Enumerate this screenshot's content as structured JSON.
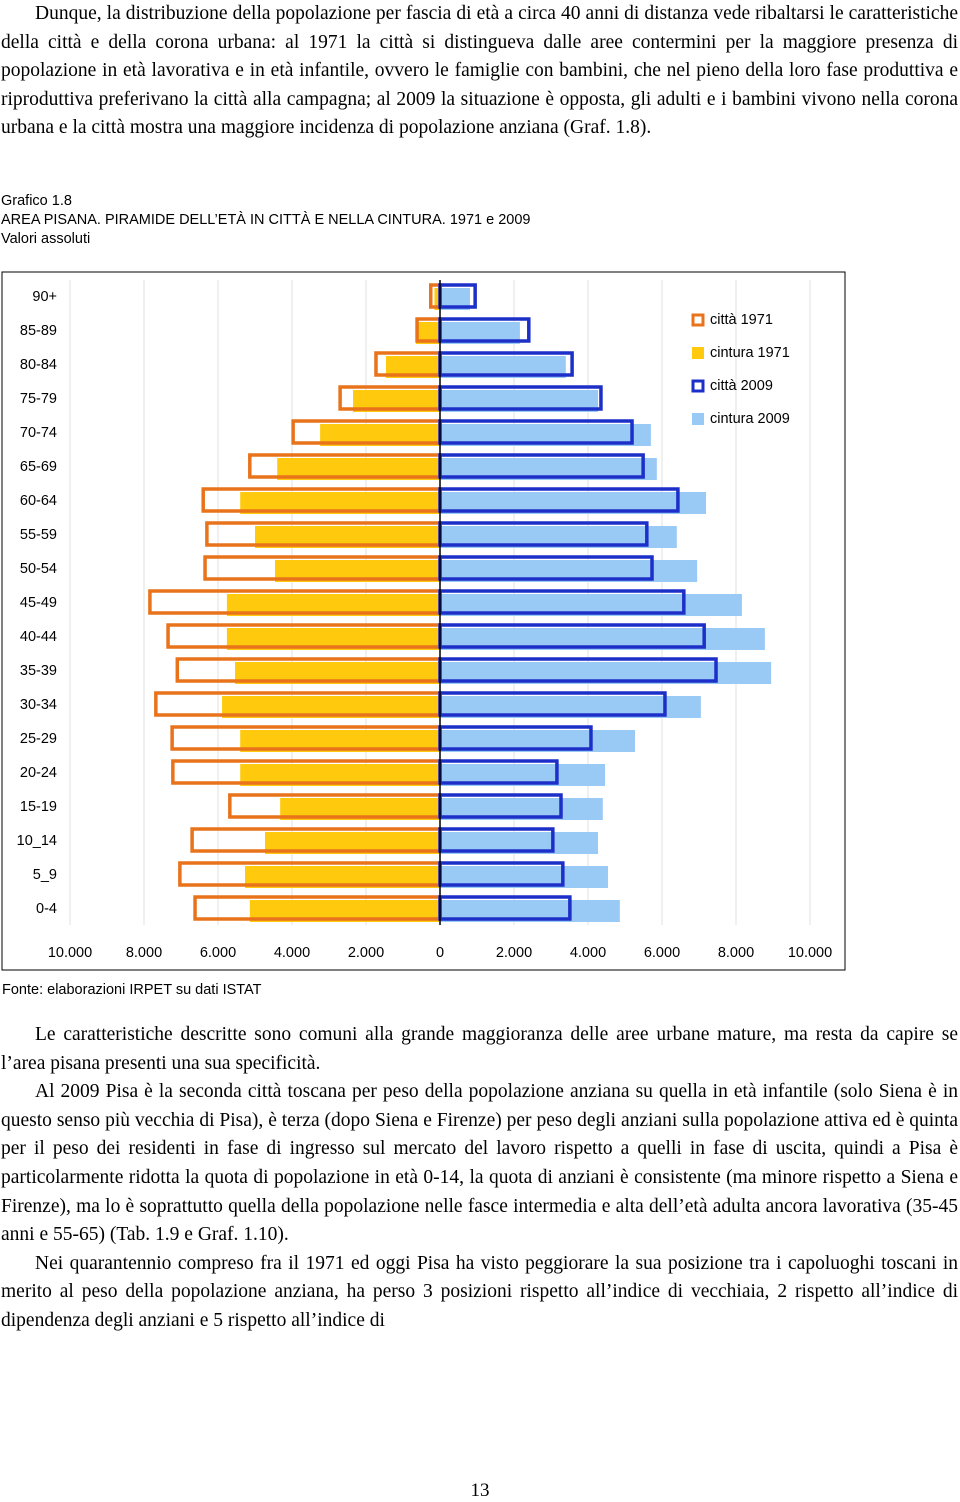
{
  "paragraphs_top": [
    "Dunque, la distribuzione della popolazione per fascia di età a circa 40 anni di distanza vede ribaltarsi le caratteristiche della città e della corona urbana: al 1971 la città si distingueva dalle aree contermini per la maggiore presenza di popolazione in età lavorativa e in età infantile, ovvero le famiglie con bambini, che nel pieno della loro fase produttiva e riproduttiva preferivano la città alla campagna; al 2009 la situazione è opposta, gli adulti e i bambini vivono nella corona urbana e la città mostra una maggiore incidenza di popolazione anziana (Graf. 1.8)."
  ],
  "figure": {
    "label": "Grafico 1.8",
    "title": "AREA PISANA. PIRAMIDE DELL’ETÀ IN CITTÀ E NELLA CINTURA. 1971 e 2009",
    "subtitle": "Valori assoluti",
    "source": "Fonte: elaborazioni IRPET su dati ISTAT"
  },
  "chart_data": {
    "type": "population_pyramid",
    "categories": [
      "90+",
      "85-89",
      "80-84",
      "75-79",
      "70-74",
      "65-69",
      "60-64",
      "55-59",
      "50-54",
      "45-49",
      "40-44",
      "35-39",
      "30-34",
      "25-29",
      "20-24",
      "15-19",
      "10_14",
      "5_9",
      "0-4"
    ],
    "series": [
      {
        "name": "città 1971",
        "color": "#e8731a",
        "style": "outline",
        "values": [
          -250,
          -620,
          -1730,
          -2700,
          -3970,
          -5140,
          -6400,
          -6300,
          -6350,
          -7840,
          -7350,
          -7100,
          -7680,
          -7240,
          -7220,
          -5680,
          -6700,
          -7030,
          -6620
        ]
      },
      {
        "name": "cintura 1971",
        "color": "#ffc90e",
        "style": "fill",
        "values": [
          -150,
          -650,
          -1460,
          -2350,
          -3240,
          -4400,
          -5400,
          -5000,
          -4460,
          -5760,
          -5760,
          -5540,
          -5890,
          -5400,
          -5400,
          -4320,
          -4730,
          -5270,
          -5140
        ]
      },
      {
        "name": "città 2009",
        "color": "#1c2fc8",
        "style": "outline",
        "values": [
          950,
          2400,
          3570,
          4350,
          5190,
          5490,
          6430,
          5590,
          5730,
          6590,
          7140,
          7460,
          6080,
          4080,
          3160,
          3270,
          3050,
          3320,
          3510
        ]
      },
      {
        "name": "cintura 2009",
        "color": "#99c9f5",
        "style": "fill",
        "values": [
          810,
          2160,
          3400,
          4270,
          5700,
          5860,
          7190,
          6400,
          6950,
          8160,
          8780,
          8950,
          7050,
          5270,
          4460,
          4400,
          4270,
          4540,
          4860
        ]
      }
    ],
    "xlim": [
      -10000,
      10000
    ],
    "xticks": [
      {
        "value": -10000,
        "label": "10.000"
      },
      {
        "value": -8000,
        "label": "8.000"
      },
      {
        "value": -6000,
        "label": "6.000"
      },
      {
        "value": -4000,
        "label": "4.000"
      },
      {
        "value": -2000,
        "label": "2.000"
      },
      0,
      {
        "value": 2000,
        "label": "2.000"
      },
      {
        "value": 4000,
        "label": "4.000"
      },
      {
        "value": 6000,
        "label": "6.000"
      },
      {
        "value": 8000,
        "label": "8.000"
      },
      {
        "value": 10000,
        "label": "10.000"
      }
    ],
    "grid": true,
    "legend": "top-right"
  },
  "paragraphs_bottom": [
    "Le caratteristiche descritte sono comuni alla grande maggioranza delle aree urbane mature, ma resta da capire se l’area pisana presenti una sua specificità.",
    "Al 2009 Pisa è la seconda città toscana per peso della popolazione anziana su quella in età infantile (solo Siena è in questo senso più vecchia di Pisa), è terza (dopo Siena e Firenze) per peso degli anziani sulla popolazione attiva ed è quinta per il peso dei residenti in fase di ingresso sul mercato del lavoro rispetto a quelli in fase di uscita, quindi a Pisa è particolarmente ridotta la quota di popolazione in età 0-14, la quota di anziani è consistente (ma minore rispetto a Siena e Firenze), ma lo è soprattutto quella della popolazione nelle fasce intermedia e alta dell’età adulta ancora lavorativa (35-45 anni e 55-65) (Tab. 1.9 e Graf. 1.10).",
    "Nei quarantennio compreso fra il 1971 ed oggi Pisa ha visto peggiorare la sua posizione tra i capoluoghi toscani in merito al peso della popolazione anziana, ha perso 3 posizioni rispetto all’indice di vecchiaia, 2 rispetto all’indice di dipendenza degli anziani e 5 rispetto all’indice di"
  ],
  "page_number": "13"
}
